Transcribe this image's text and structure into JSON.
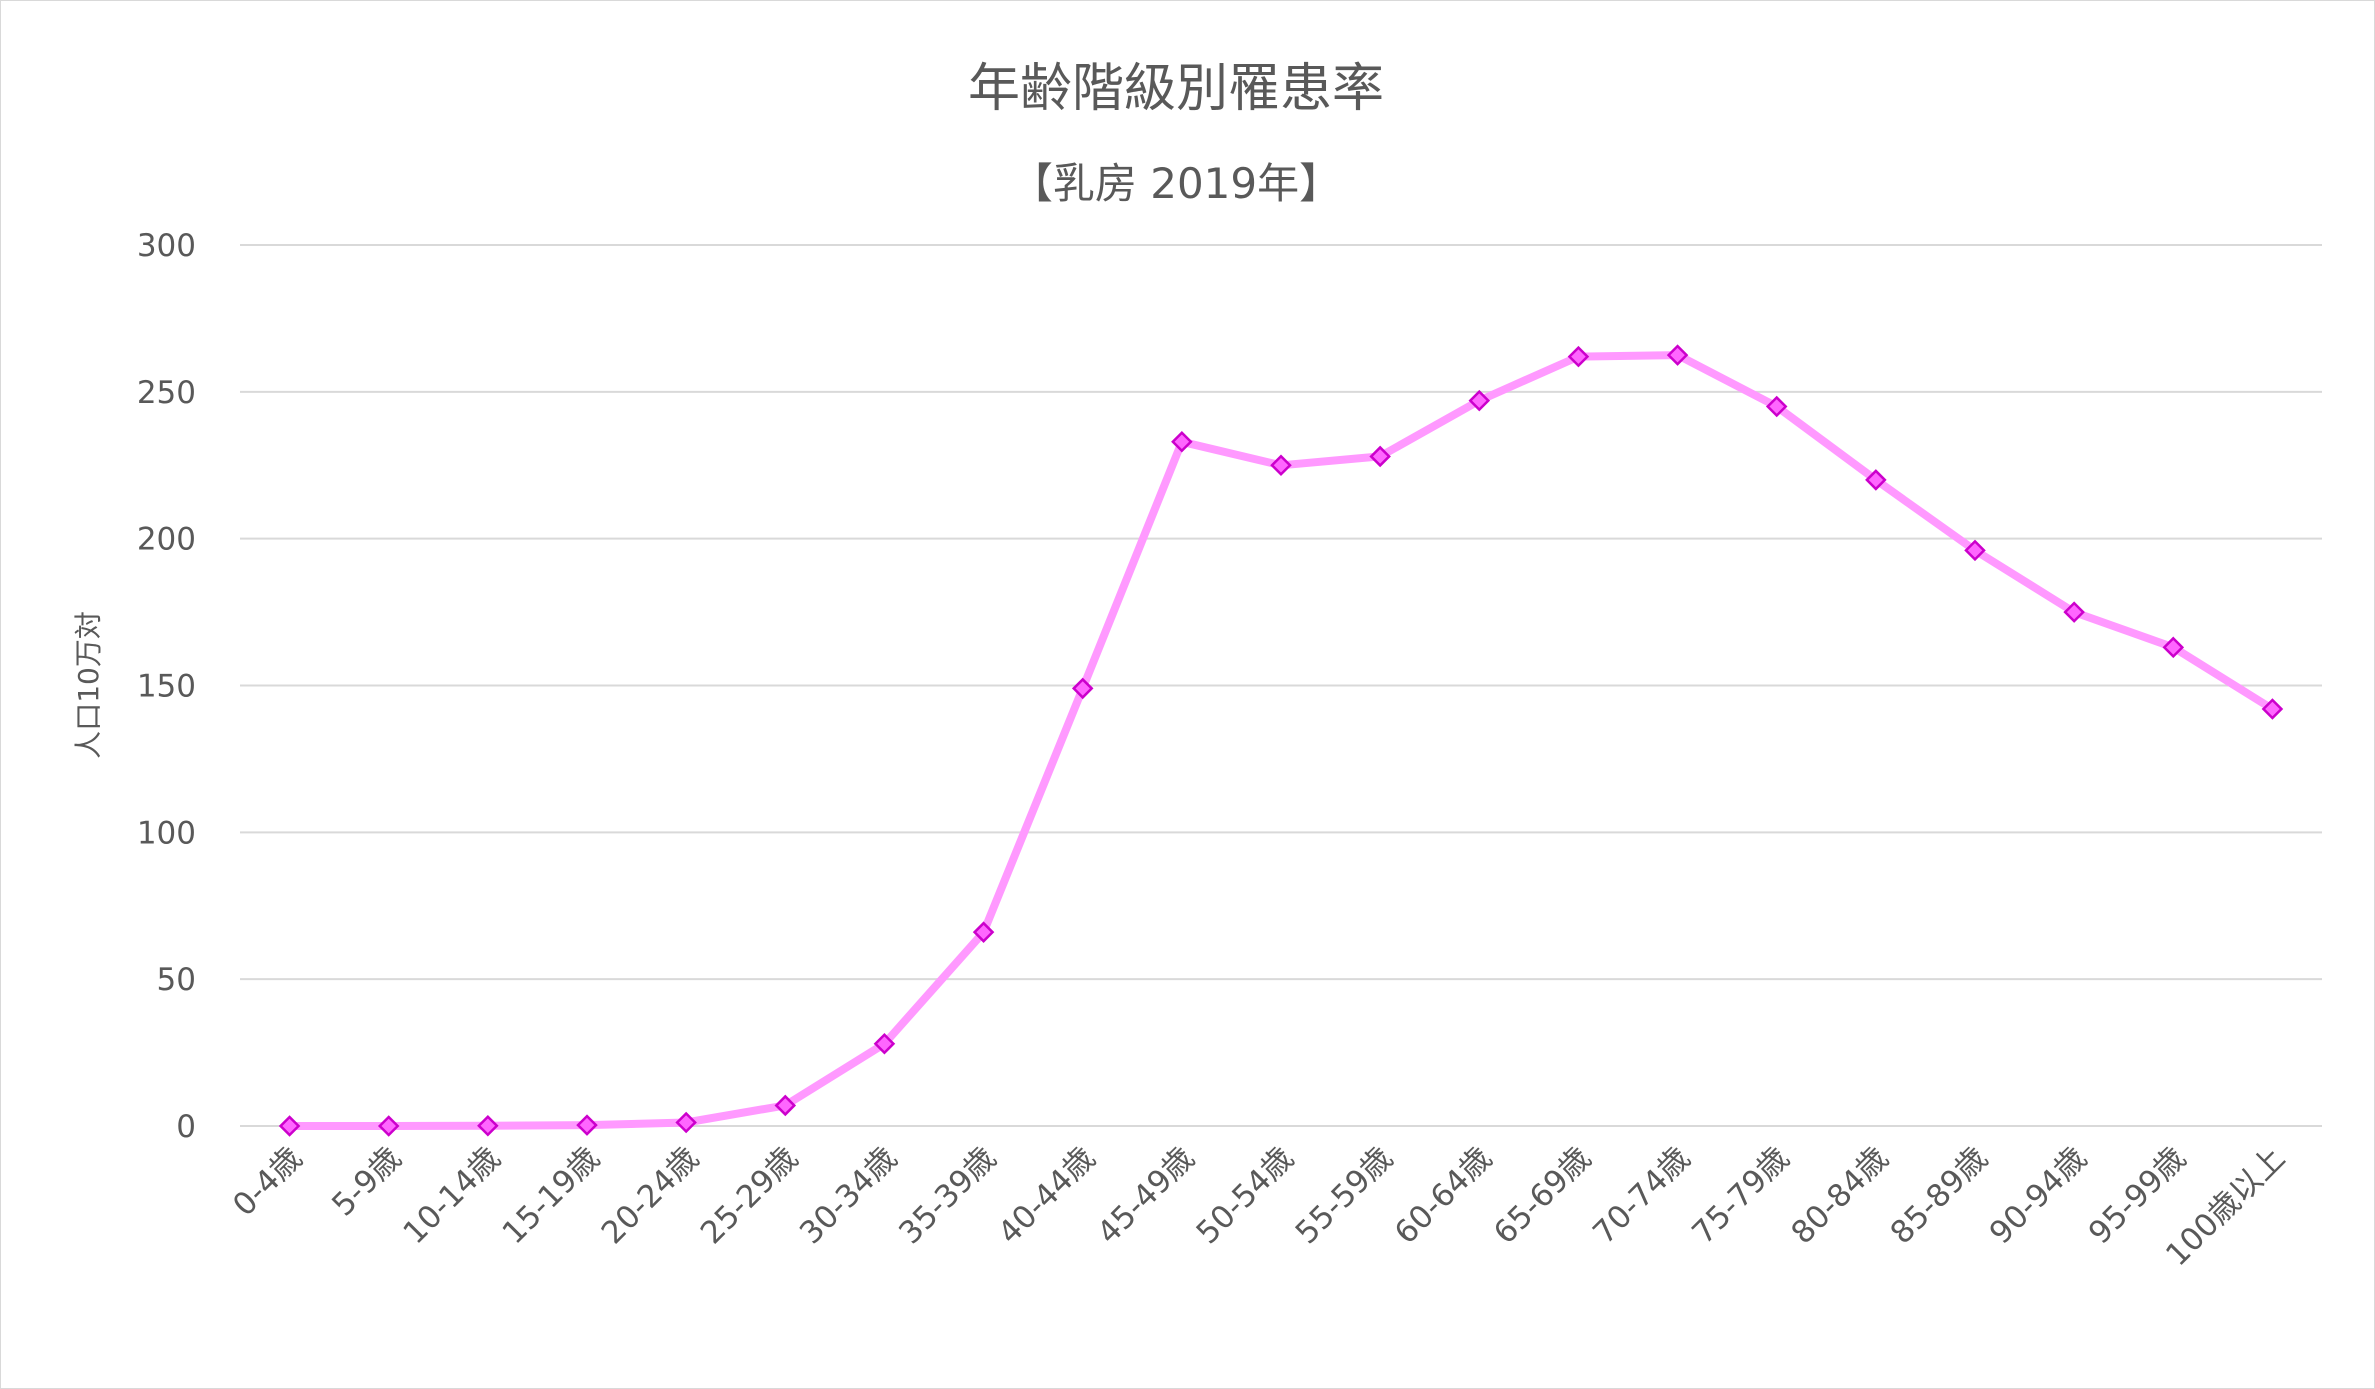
{
  "chart_data": {
    "type": "line",
    "title": "年齢階級別罹患率",
    "subtitle": "【乳房 2019年】",
    "xlabel": "",
    "ylabel": "人口10万対",
    "ylim": [
      0,
      300
    ],
    "yticks": [
      "0",
      "50",
      "100",
      "150",
      "200",
      "250",
      "300"
    ],
    "grid": true,
    "categories": [
      "0-4歳",
      "5-9歳",
      "10-14歳",
      "15-19歳",
      "20-24歳",
      "25-29歳",
      "30-34歳",
      "35-39歳",
      "40-44歳",
      "45-49歳",
      "50-54歳",
      "55-59歳",
      "60-64歳",
      "65-69歳",
      "70-74歳",
      "75-79歳",
      "80-84歳",
      "85-89歳",
      "90-94歳",
      "95-99歳",
      "100歳以上"
    ],
    "series": [
      {
        "values": [
          0,
          0,
          0.1,
          0.3,
          1.2,
          7,
          28,
          66,
          149,
          233,
          225,
          228,
          247,
          262,
          262.5,
          245,
          220,
          196,
          175,
          163,
          142
        ],
        "line_color": "#ff99ff",
        "marker_fill": "#ff66ff",
        "marker_stroke": "#cc00cc"
      }
    ]
  }
}
